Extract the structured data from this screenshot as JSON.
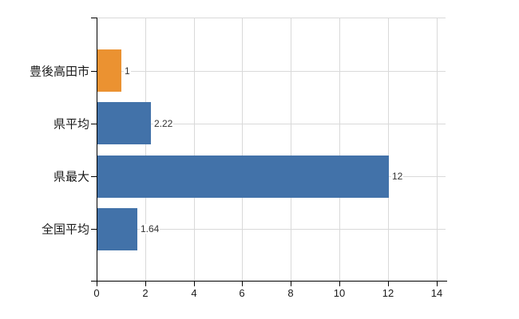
{
  "chart_data": {
    "type": "bar",
    "orientation": "horizontal",
    "title": "",
    "xlabel": "",
    "ylabel": "",
    "categories": [
      "豊後高田市",
      "県平均",
      "県最大",
      "全国平均"
    ],
    "values": [
      1,
      2.22,
      12,
      1.64
    ],
    "value_labels": [
      "1",
      "2.22",
      "12",
      "1.64"
    ],
    "bar_colors": [
      "#eb9231",
      "#4272a9",
      "#4272a9",
      "#4272a9"
    ],
    "x_ticks": [
      0,
      2,
      4,
      6,
      8,
      10,
      12,
      14
    ],
    "x_tick_labels": [
      "0",
      "2",
      "4",
      "6",
      "8",
      "10",
      "12",
      "14"
    ],
    "xlim": [
      0,
      14.4
    ],
    "grid": true,
    "legend": false,
    "colors": {
      "grid": "#d9d9d9",
      "axis": "#000000",
      "tick_label": "#1a1a1a",
      "value_label": "#333333",
      "background": "#ffffff"
    }
  }
}
